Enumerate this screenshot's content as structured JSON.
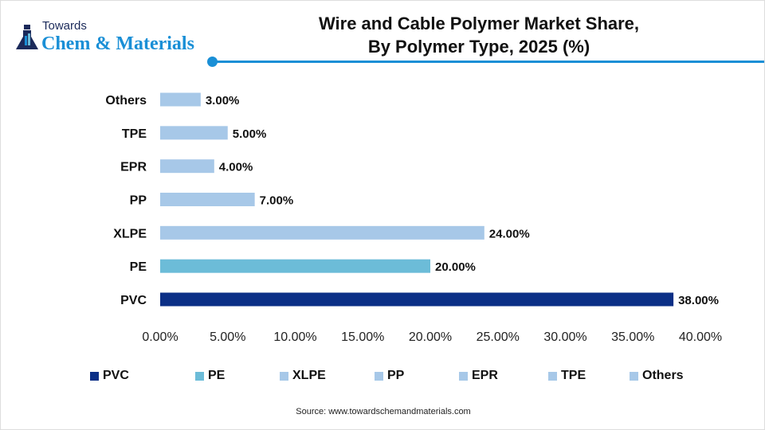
{
  "logo": {
    "line1": "Towards",
    "line2": "Chem & Materials"
  },
  "chart_data": {
    "type": "bar",
    "orientation": "horizontal",
    "title": "Wire and Cable Polymer Market Share, By Polymer Type, 2025 (%)",
    "title_line1": "Wire and Cable Polymer Market Share,",
    "title_line2": "By Polymer Type, 2025 (%)",
    "categories": [
      "PVC",
      "PE",
      "XLPE",
      "PP",
      "EPR",
      "TPE",
      "Others"
    ],
    "values": [
      38,
      20,
      24,
      7,
      4,
      5,
      3
    ],
    "data_labels": [
      "38.00%",
      "20.00%",
      "24.00%",
      "7.00%",
      "4.00%",
      "5.00%",
      "3.00%"
    ],
    "colors": [
      "#0b2f86",
      "#6cbcd8",
      "#a7c8e8",
      "#a7c8e8",
      "#a7c8e8",
      "#a7c8e8",
      "#a7c8e8"
    ],
    "xlim": [
      0,
      40
    ],
    "xticks": [
      "0.00%",
      "5.00%",
      "10.00%",
      "15.00%",
      "20.00%",
      "25.00%",
      "30.00%",
      "35.00%",
      "40.00%"
    ],
    "grid": false,
    "legend": "bottom"
  },
  "source": "Source: www.towardschemandmaterials.com"
}
